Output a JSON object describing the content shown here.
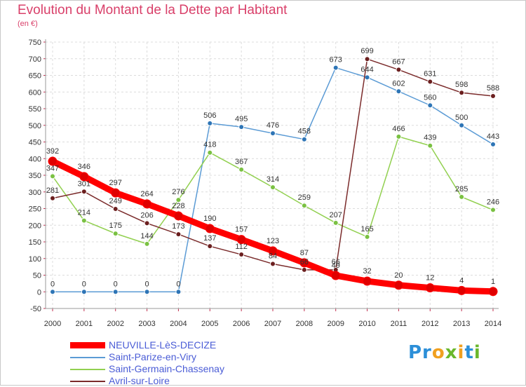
{
  "header": {
    "title": "Evolution du Montant de la Dette par Habitant",
    "subtitle": "(en €)"
  },
  "logo": {
    "text": "Proxiti"
  },
  "chart_data": {
    "type": "line",
    "title": "Evolution du Montant de la Dette par Habitant",
    "subtitle": "(en €)",
    "x": [
      "2000",
      "2001",
      "2002",
      "2003",
      "2004",
      "2005",
      "2006",
      "2007",
      "2008",
      "2009",
      "2010",
      "2011",
      "2012",
      "2013",
      "2014"
    ],
    "ylim": [
      -50,
      750
    ],
    "yticks": [
      -50,
      0,
      50,
      100,
      150,
      200,
      250,
      300,
      350,
      400,
      450,
      500,
      550,
      600,
      650,
      700,
      750
    ],
    "grid": true,
    "legend": "bottom-left",
    "series": [
      {
        "name": "Saint-Parize-en-Viry",
        "color": "#5b9bd5",
        "markerColor": "#2e75b6",
        "values": [
          0,
          0,
          0,
          0,
          0,
          506,
          495,
          476,
          458,
          673,
          644,
          602,
          560,
          500,
          443
        ],
        "labels": [
          "0",
          "0",
          "0",
          "0",
          "0",
          "506",
          "495",
          "476",
          "458",
          "673",
          "644",
          "602",
          "560",
          "500",
          "443"
        ]
      },
      {
        "name": "Saint-Germain-Chassenay",
        "color": "#92d050",
        "markerColor": "#7ac142",
        "values": [
          347,
          214,
          175,
          144,
          276,
          418,
          367,
          314,
          259,
          207,
          165,
          466,
          439,
          285,
          246
        ],
        "labels": [
          "347",
          "214",
          "175",
          "144",
          "276",
          "418",
          "367",
          "314",
          "259",
          "207",
          "165",
          "466",
          "439",
          "285",
          "246"
        ]
      },
      {
        "name": "Avril-sur-Loire",
        "color": "#7b2b2b",
        "markerColor": "#6b1f1f",
        "values": [
          281,
          301,
          249,
          206,
          173,
          137,
          112,
          84,
          66,
          66,
          699,
          667,
          631,
          598,
          588
        ],
        "labels": [
          "281",
          "301",
          "249",
          "206",
          "173",
          "137",
          "112",
          "84",
          "66",
          "66",
          "699",
          "667",
          "631",
          "598",
          "588"
        ]
      },
      {
        "name": "NEUVILLE-LèS-DECIZE",
        "color": "#ff0000",
        "markerColor": "#e00000",
        "values": [
          392,
          346,
          297,
          264,
          228,
          190,
          157,
          123,
          87,
          49,
          32,
          20,
          12,
          4,
          1
        ],
        "labels": [
          "392",
          "346",
          "297",
          "264",
          "228",
          "190",
          "157",
          "123",
          "87",
          "49",
          "32",
          "20",
          "12",
          "4",
          "1"
        ]
      }
    ]
  }
}
